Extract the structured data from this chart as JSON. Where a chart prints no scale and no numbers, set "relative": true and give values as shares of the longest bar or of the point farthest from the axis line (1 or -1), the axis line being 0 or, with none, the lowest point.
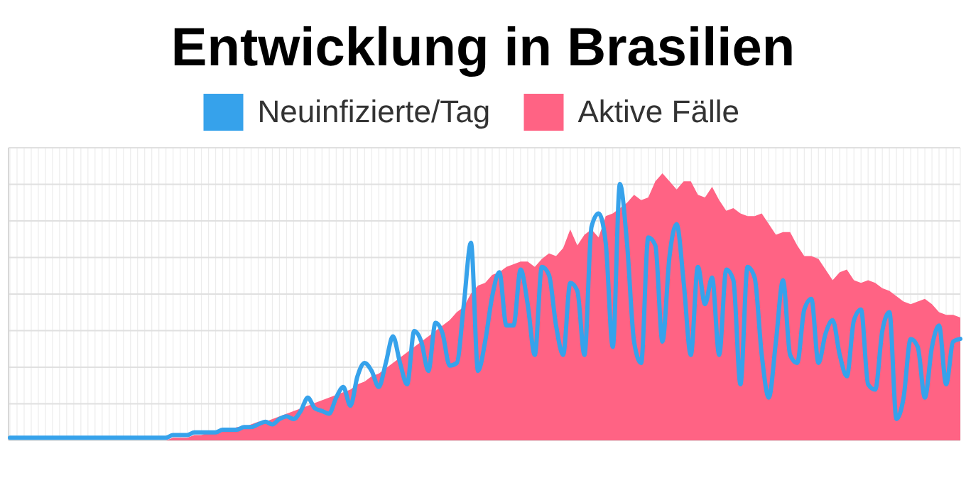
{
  "chart_data": {
    "type": "area",
    "title": "Entwicklung in Brasilien",
    "relative": true,
    "grid": true,
    "legend": "top",
    "categories": [
      null,
      null,
      null,
      null,
      null,
      null,
      null,
      null,
      null,
      null,
      null,
      null,
      null,
      null,
      null,
      null,
      null,
      null,
      null,
      null,
      null,
      null,
      null,
      null,
      null,
      null,
      null,
      null,
      null,
      null,
      null,
      null,
      null,
      null,
      null,
      null,
      null,
      null,
      null,
      null,
      null,
      null,
      null,
      null,
      null,
      null,
      null,
      null,
      null,
      null,
      null,
      null,
      null,
      null,
      null,
      null,
      null,
      null,
      null,
      null,
      null,
      null,
      null,
      null,
      null,
      null,
      null,
      null,
      null,
      null,
      null,
      null,
      null,
      null,
      null,
      null,
      null,
      null,
      null,
      null,
      null,
      null,
      null,
      null,
      null,
      null,
      null,
      null,
      null,
      null,
      null,
      null,
      null,
      null,
      null,
      null,
      null,
      null,
      null,
      null,
      null,
      null,
      null,
      null,
      null,
      null,
      null,
      null,
      null,
      null,
      null,
      null,
      null,
      null,
      null,
      null,
      null,
      null,
      null,
      null,
      null,
      null,
      null,
      null,
      null,
      null,
      null,
      null,
      null,
      null,
      null,
      null,
      null,
      null,
      null
    ],
    "series": [
      {
        "name": "Aktive Fälle",
        "color": "#ff6384",
        "values": [
          0,
          0,
          0,
          0,
          0,
          0,
          0,
          0,
          0,
          0,
          0,
          0,
          0,
          0,
          0,
          0,
          0,
          0,
          0,
          0,
          0,
          0,
          0,
          0.01,
          0.01,
          0.01,
          0.02,
          0.02,
          0.03,
          0.03,
          0.04,
          0.04,
          0.05,
          0.05,
          0.06,
          0.07,
          0.07,
          0.08,
          0.09,
          0.1,
          0.11,
          0.12,
          0.13,
          0.14,
          0.15,
          0.16,
          0.17,
          0.18,
          0.19,
          0.21,
          0.22,
          0.24,
          0.25,
          0.27,
          0.29,
          0.31,
          0.33,
          0.35,
          0.37,
          0.39,
          0.41,
          0.43,
          0.45,
          0.48,
          0.5,
          0.55,
          0.58,
          0.59,
          0.62,
          0.63,
          0.65,
          0.66,
          0.67,
          0.67,
          0.65,
          0.68,
          0.7,
          0.69,
          0.72,
          0.79,
          0.73,
          0.77,
          0.79,
          0.76,
          0.84,
          0.85,
          0.87,
          0.89,
          0.92,
          0.9,
          0.91,
          0.97,
          1,
          0.97,
          0.94,
          0.97,
          0.97,
          0.92,
          0.91,
          0.95,
          0.9,
          0.86,
          0.87,
          0.85,
          0.84,
          0.84,
          0.85,
          0.81,
          0.77,
          0.78,
          0.78,
          0.73,
          0.69,
          0.69,
          0.68,
          0.64,
          0.6,
          0.63,
          0.64,
          0.6,
          0.59,
          0.6,
          0.59,
          0.57,
          0.56,
          0.54,
          0.52,
          0.51,
          0.52,
          0.53,
          0.51,
          0.48,
          0.47,
          0.47,
          0.46
        ]
      },
      {
        "name": "Neuinfizierte/Tag",
        "type": "line",
        "color": "#36a2eb",
        "values": [
          0.01,
          0.01,
          0.01,
          0.01,
          0.01,
          0.01,
          0.01,
          0.01,
          0.01,
          0.01,
          0.01,
          0.01,
          0.01,
          0.01,
          0.01,
          0.01,
          0.01,
          0.01,
          0.01,
          0.01,
          0.01,
          0.01,
          0.01,
          0.02,
          0.02,
          0.02,
          0.03,
          0.03,
          0.03,
          0.03,
          0.04,
          0.04,
          0.04,
          0.05,
          0.05,
          0.06,
          0.07,
          0.06,
          0.08,
          0.09,
          0.08,
          0.11,
          0.16,
          0.12,
          0.11,
          0.1,
          0.16,
          0.2,
          0.13,
          0.24,
          0.29,
          0.26,
          0.2,
          0.29,
          0.39,
          0.29,
          0.21,
          0.41,
          0.37,
          0.26,
          0.44,
          0.4,
          0.28,
          0.29,
          0.51,
          0.74,
          0.26,
          0.37,
          0.54,
          0.63,
          0.43,
          0.43,
          0.64,
          0.51,
          0.32,
          0.65,
          0.62,
          0.43,
          0.32,
          0.59,
          0.56,
          0.32,
          0.8,
          0.85,
          0.74,
          0.35,
          0.96,
          0.74,
          0.37,
          0.29,
          0.76,
          0.73,
          0.37,
          0.69,
          0.81,
          0.59,
          0.32,
          0.65,
          0.51,
          0.61,
          0.32,
          0.64,
          0.6,
          0.21,
          0.65,
          0.61,
          0.32,
          0.16,
          0.37,
          0.6,
          0.32,
          0.29,
          0.49,
          0.53,
          0.29,
          0.4,
          0.45,
          0.32,
          0.24,
          0.45,
          0.49,
          0.21,
          0.19,
          0.41,
          0.48,
          0.08,
          0.16,
          0.38,
          0.35,
          0.16,
          0.35,
          0.43,
          0.21,
          0.37,
          0.38
        ]
      }
    ]
  }
}
